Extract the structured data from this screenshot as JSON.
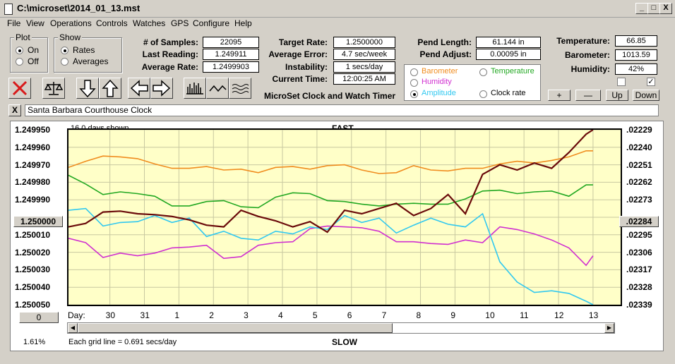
{
  "window": {
    "title": "C:\\microset\\2014_01_13.mst",
    "min_label": "_",
    "max_label": "□",
    "close_label": "X"
  },
  "menu": [
    "File",
    "View",
    "Operations",
    "Controls",
    "Watches",
    "GPS",
    "Configure",
    "Help"
  ],
  "plot_group": {
    "title": "Plot",
    "options": [
      "On",
      "Off"
    ],
    "selected": "On"
  },
  "show_group": {
    "title": "Show",
    "options": [
      "Rates",
      "Averages"
    ],
    "selected": "Rates"
  },
  "stats": {
    "samples_label": "# of Samples:",
    "samples_value": "22095",
    "last_label": "Last Reading:",
    "last_value": "1.249911",
    "avg_rate_label": "Average Rate:",
    "avg_rate_value": "1.2499903"
  },
  "target": {
    "target_label": "Target Rate:",
    "target_value": "1.2500000",
    "avg_err_label": "Average Error:",
    "avg_err_value": "4.7 sec/week",
    "instab_label": "Instability:",
    "instab_value": "1 secs/day",
    "time_label": "Current Time:",
    "time_value": "12:00:25 AM"
  },
  "pend": {
    "length_label": "Pend Length:",
    "length_value": "61.144 in",
    "adjust_label": "Pend Adjust:",
    "adjust_value": "0.00095 in"
  },
  "env": {
    "temp_label": "Temperature:",
    "temp_value": "66.85",
    "baro_label": "Barometer:",
    "baro_value": "1013.59",
    "hum_label": "Humidity:",
    "hum_value": "42%",
    "check2_mark": "✓"
  },
  "series_select": {
    "options": [
      {
        "label": "Barometer",
        "color": "#f08c1e"
      },
      {
        "label": "Temperature",
        "color": "#22a822"
      },
      {
        "label": "Humidity",
        "color": "#d030d0"
      },
      {
        "label": "Clock rate",
        "color": "#000000"
      },
      {
        "label": "Amplitude",
        "color": "#30c8f0"
      }
    ],
    "selected": "Amplitude"
  },
  "adjust_buttons": {
    "plus": "+",
    "minus": "—",
    "up": "Up",
    "down": "Down"
  },
  "app_caption": "MicroSet Clock and Watch Timer",
  "clock_name": "Santa Barbara Courthouse Clock",
  "clear_label": "X",
  "chart_header": {
    "days_shown": "16.0 days shown",
    "fast": "FAST",
    "slow": "SLOW",
    "grid_note": "Each grid line = 0.691 secs/day",
    "pct": "1.61%",
    "day_label": "Day:",
    "zero_button": "0",
    "center_left": "1.250000",
    "center_right": ".02284"
  },
  "chart_data": {
    "type": "line",
    "y_left_ticks": [
      "1.249950",
      "1.249960",
      "1.249970",
      "1.249980",
      "1.249990",
      "1.250000",
      "1.250010",
      "1.250020",
      "1.250030",
      "1.250040",
      "1.250050"
    ],
    "y_right_ticks": [
      ".02229",
      ".02240",
      ".02251",
      ".02262",
      ".02273",
      ".02284",
      ".02295",
      ".02306",
      ".02317",
      ".02328",
      ".02339"
    ],
    "x_day_ticks": [
      "30",
      "31",
      "1",
      "2",
      "3",
      "4",
      "5",
      "6",
      "7",
      "8",
      "9",
      "10",
      "11",
      "12",
      "13"
    ],
    "x_range": [
      0,
      16
    ],
    "series": [
      {
        "name": "Barometer",
        "color": "#f08c1e",
        "x": [
          0,
          0.5,
          1,
          1.5,
          2,
          2.5,
          3,
          3.5,
          4,
          4.5,
          5,
          5.5,
          6,
          6.5,
          7,
          7.5,
          8,
          8.5,
          9,
          9.5,
          10,
          10.5,
          11,
          11.5,
          12,
          12.5,
          13,
          13.5,
          14,
          14.5,
          15,
          15.2
        ],
        "y": [
          1.2499715,
          1.249968,
          1.249965,
          1.2499655,
          1.2499665,
          1.2499695,
          1.249972,
          1.249972,
          1.249971,
          1.249973,
          1.2499725,
          1.2499745,
          1.2499715,
          1.249971,
          1.2499725,
          1.2499705,
          1.24997,
          1.249973,
          1.249975,
          1.2499745,
          1.2499705,
          1.249973,
          1.2499735,
          1.249972,
          1.249972,
          1.2499695,
          1.249968,
          1.249969,
          1.2499675,
          1.2499655,
          1.249962,
          1.249962
        ]
      },
      {
        "name": "Temperature",
        "color": "#22a822",
        "x": [
          0,
          0.5,
          1,
          1.5,
          2,
          2.5,
          3,
          3.5,
          4,
          4.5,
          5,
          5.5,
          6,
          6.5,
          7,
          7.5,
          8,
          8.5,
          9,
          9.5,
          10,
          10.5,
          11,
          11.5,
          12,
          12.5,
          13,
          13.5,
          14,
          14.5,
          15,
          15.2
        ],
        "y": [
          1.249976,
          1.249981,
          1.249987,
          1.2499855,
          1.2499865,
          1.249988,
          1.2499935,
          1.2499935,
          1.249991,
          1.2499905,
          1.249994,
          1.2499945,
          1.2499885,
          1.249986,
          1.2499865,
          1.2499905,
          1.249991,
          1.2499925,
          1.2499935,
          1.2499925,
          1.249992,
          1.2499925,
          1.2499925,
          1.2499895,
          1.249985,
          1.2499845,
          1.2499865,
          1.2499855,
          1.249985,
          1.249988,
          1.2499815,
          1.2499815
        ]
      },
      {
        "name": "Humidity",
        "color": "#d030d0",
        "x": [
          0,
          0.5,
          1,
          1.5,
          2,
          2.5,
          3,
          3.5,
          4,
          4.5,
          5,
          5.5,
          6,
          6.5,
          7,
          7.5,
          8,
          8.5,
          9,
          9.5,
          10,
          10.5,
          11,
          11.5,
          12,
          12.5,
          13,
          13.5,
          14,
          14.5,
          15,
          15.2
        ],
        "y": [
          1.250012,
          1.2500145,
          1.250023,
          1.2500205,
          1.250022,
          1.2500205,
          1.2500175,
          1.250017,
          1.250016,
          1.2500235,
          1.2500225,
          1.250016,
          1.2500145,
          1.250014,
          1.2500065,
          1.250005,
          1.2500055,
          1.250006,
          1.250008,
          1.250014,
          1.250014,
          1.250015,
          1.2500155,
          1.250013,
          1.2500145,
          1.2500055,
          1.250007,
          1.2500095,
          1.250013,
          1.2500175,
          1.2500275,
          1.250022
        ]
      },
      {
        "name": "Amplitude",
        "color": "#30c8f0",
        "x": [
          0,
          0.5,
          1,
          1.5,
          2,
          2.5,
          3,
          3.5,
          4,
          4.5,
          5,
          5.5,
          6,
          6.5,
          7,
          7.5,
          8,
          8.5,
          9,
          9.5,
          10,
          10.5,
          11,
          11.5,
          12,
          12.5,
          13,
          13.5,
          14,
          14.5,
          15,
          15.2
        ],
        "y": [
          1.249996,
          1.249995,
          1.250005,
          1.250003,
          1.2500025,
          1.249999,
          1.250003,
          1.2500005,
          1.250011,
          1.250008,
          1.250012,
          1.250013,
          1.250008,
          1.2500095,
          1.2500055,
          1.250007,
          1.249999,
          1.250003,
          1.2500005,
          1.250009,
          1.2500045,
          1.2500005,
          1.250004,
          1.2500055,
          1.249998,
          1.2500255,
          1.250037,
          1.250043,
          1.250042,
          1.2500435,
          1.250048,
          1.25005
        ]
      },
      {
        "name": "Clock rate",
        "color": "#6a0a0a",
        "x": [
          0,
          0.5,
          1,
          1.5,
          2,
          2.5,
          3,
          3.5,
          4,
          4.5,
          5,
          5.5,
          6,
          6.5,
          7,
          7.5,
          8,
          8.5,
          9,
          9.5,
          10,
          10.5,
          11,
          11.5,
          12,
          12.5,
          13,
          13.5,
          14,
          14.5,
          15,
          15.2
        ],
        "y": [
          1.2500055,
          1.2500035,
          1.249997,
          1.2499965,
          1.249998,
          1.2499985,
          1.2499995,
          1.2500015,
          1.2500045,
          1.2500055,
          1.249996,
          1.2499995,
          1.250002,
          1.2500055,
          1.2500025,
          1.2500085,
          1.249996,
          1.249998,
          1.249995,
          1.249992,
          1.249999,
          1.249995,
          1.249987,
          1.249998,
          1.2499755,
          1.24997,
          1.249973,
          1.249969,
          1.249972,
          1.249963,
          1.2499525,
          1.24995
        ]
      }
    ]
  }
}
